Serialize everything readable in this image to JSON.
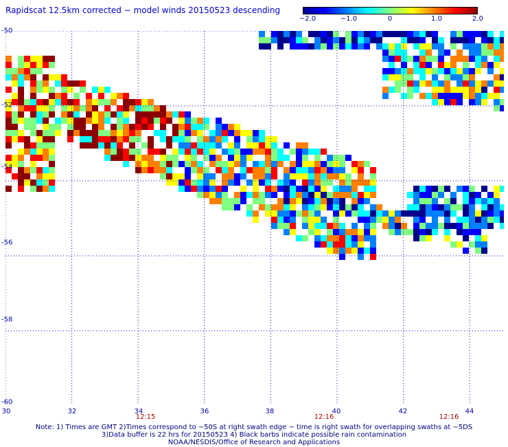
{
  "title": "Rapidscat 12.5km corrected − model winds 20150523 descending",
  "colorbar": {
    "min": -2.0,
    "max": 2.0,
    "tick_labels": [
      "−2.0",
      "−1.0",
      "0",
      "1.0",
      "2.0"
    ],
    "tick_values": [
      -2.0,
      -1.0,
      0,
      1.0,
      2.0
    ],
    "colors": [
      "#00008b",
      "#0000ff",
      "#0080ff",
      "#00ffff",
      "#80ff80",
      "#ffff00",
      "#ff8000",
      "#ff0000",
      "#8b0000"
    ]
  },
  "map": {
    "lon_range": [
      30,
      45
    ],
    "lat_range": [
      -60,
      -50
    ],
    "lon_ticks": [
      "30",
      "32",
      "34",
      "36",
      "38",
      "40",
      "42",
      "44"
    ],
    "lon_tick_values": [
      30,
      32,
      34,
      36,
      38,
      40,
      42,
      44
    ],
    "lat_ticks": [
      "-50",
      "-52",
      "-54",
      "-56",
      "-58",
      "-60"
    ],
    "lat_tick_values": [
      -50,
      -52,
      -54,
      -56,
      -58,
      -60
    ],
    "grid": true,
    "grid_color": "#0000cc",
    "time_labels": [
      {
        "text": "12:15",
        "lon": 34.2
      },
      {
        "text": "12:16",
        "lon": 39.7
      },
      {
        "text": "12:16",
        "lon": 43.4
      }
    ],
    "field_shape": "speed difference (m/s) swaths between -50 and -56 latitude"
  },
  "notes": [
    "Note: 1) Times are GMT 2)Times correspond to −50S at right swath edge − time is right swath for overlapping swaths at −5DS",
    "3)Data buffer is 22 hrs for 20150523 4) Black barbs indicate possible rain contamination",
    "NOAA/NESDIS/Office of Research and Applications"
  ]
}
